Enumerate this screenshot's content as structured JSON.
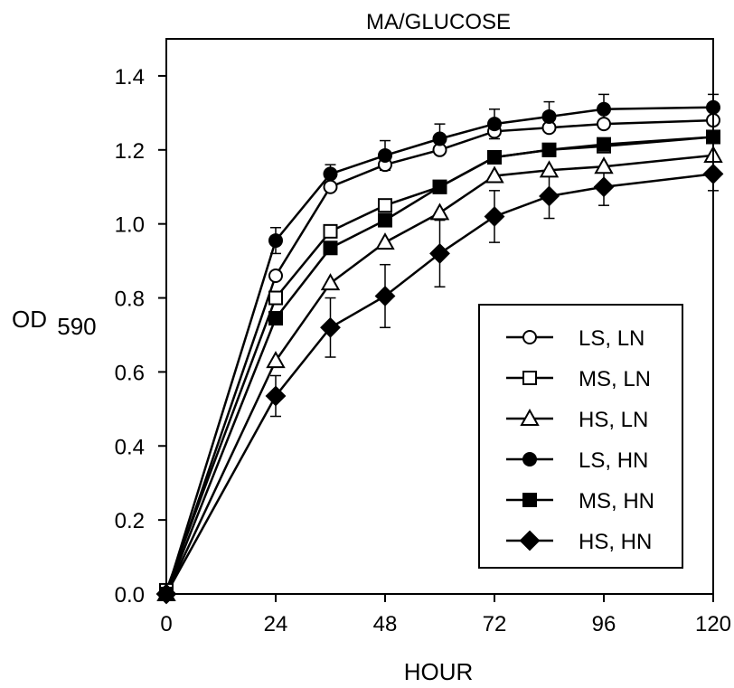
{
  "chart_data": {
    "type": "line",
    "title": "MA/GLUCOSE",
    "xlabel": "HOUR",
    "ylabel_main": "OD",
    "ylabel_sub": "590",
    "xlim": [
      0,
      120
    ],
    "ylim": [
      0,
      1.5
    ],
    "xticks": [
      0,
      24,
      48,
      72,
      96,
      120
    ],
    "yticks": [
      0.0,
      0.2,
      0.4,
      0.6,
      0.8,
      1.0,
      1.2,
      1.4
    ],
    "ytick_labels": [
      "0.0",
      "0.2",
      "0.4",
      "0.6",
      "0.8",
      "1.0",
      "1.2",
      "1.4"
    ],
    "legend_position": "bottom-right",
    "grid": false,
    "x": [
      0,
      24,
      36,
      48,
      60,
      72,
      84,
      96,
      120
    ],
    "series": [
      {
        "name": "LS, LN",
        "marker": "circle",
        "filled": false,
        "values": [
          0.0,
          0.86,
          1.1,
          1.16,
          1.2,
          1.25,
          1.26,
          1.27,
          1.28
        ],
        "errors": [
          0,
          0,
          0,
          0,
          0,
          0,
          0,
          0,
          0
        ]
      },
      {
        "name": "MS, LN",
        "marker": "square",
        "filled": false,
        "values": [
          0.01,
          0.8,
          0.98,
          1.05,
          1.1,
          1.18,
          1.2,
          1.21,
          1.235
        ],
        "errors": [
          0,
          0,
          0,
          0,
          0,
          0,
          0,
          0,
          0
        ]
      },
      {
        "name": "HS, LN",
        "marker": "triangle",
        "filled": false,
        "values": [
          0.0,
          0.63,
          0.84,
          0.95,
          1.03,
          1.13,
          1.145,
          1.155,
          1.185
        ],
        "errors": [
          0,
          0,
          0,
          0,
          0,
          0,
          0,
          0,
          0
        ]
      },
      {
        "name": "LS, HN",
        "marker": "circle",
        "filled": true,
        "values": [
          0.0,
          0.955,
          1.135,
          1.185,
          1.23,
          1.27,
          1.29,
          1.31,
          1.315
        ],
        "errors": [
          0,
          0.035,
          0.025,
          0.04,
          0.04,
          0.04,
          0.04,
          0.04,
          0.035
        ]
      },
      {
        "name": "MS, HN",
        "marker": "square",
        "filled": true,
        "values": [
          0.0,
          0.745,
          0.935,
          1.01,
          1.1,
          1.18,
          1.2,
          1.215,
          1.235
        ],
        "errors": [
          0,
          0,
          0,
          0,
          0,
          0,
          0,
          0,
          0
        ]
      },
      {
        "name": "HS, HN",
        "marker": "diamond",
        "filled": true,
        "values": [
          0.0,
          0.535,
          0.72,
          0.805,
          0.92,
          1.02,
          1.075,
          1.1,
          1.135
        ],
        "errors": [
          0,
          0.055,
          0.08,
          0.085,
          0.09,
          0.07,
          0.06,
          0.05,
          0.045
        ]
      }
    ]
  }
}
